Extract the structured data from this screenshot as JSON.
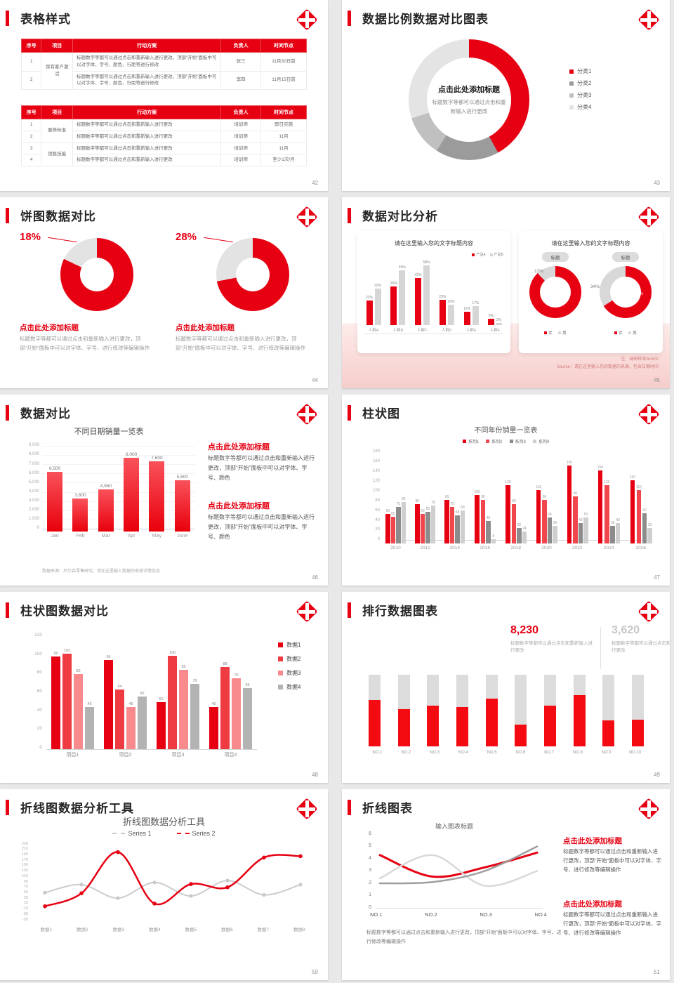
{
  "palette": {
    "red": "#e60012",
    "red2": "#ef3b42",
    "pink": "#f8898c",
    "gray_dark": "#8c8c8c",
    "gray_mid": "#bdbdbd",
    "gray_light": "#e3e3e3"
  },
  "s42": {
    "title": "表格样式",
    "page": "42",
    "headers": [
      "序号",
      "项目",
      "行动方案",
      "负责人",
      "时间节点"
    ],
    "table1": [
      {
        "no": "1",
        "project": "保有客户激活",
        "span": 2,
        "plan": "标题数字等都可以通过点击和重新输入进行更改，顶部“开始”面板中可以对字体、字号、颜色、行距等进行修改",
        "owner": "张三",
        "time": "11月30日前"
      },
      {
        "no": "2",
        "plan": "标题数字等都可以通过点击和重新输入进行更改，顶部“开始”面板中可以对字体、字号、颜色、行距等进行修改",
        "owner": "李四",
        "time": "11月15日前"
      }
    ],
    "table2": [
      {
        "no": "1",
        "project": "服务标准",
        "span": 2,
        "plan": "标题数字等都可以通过点击和重新输入进行更改",
        "owner": "培训师",
        "time": "即日实施"
      },
      {
        "no": "2",
        "plan": "标题数字等都可以通过点击和重新输入进行更改",
        "owner": "培训师",
        "time": "11月"
      },
      {
        "no": "3",
        "project": "销售技能",
        "span": 2,
        "plan": "标题数字等都可以通过点击和重新输入进行更改",
        "owner": "培训师",
        "time": "11月"
      },
      {
        "no": "4",
        "plan": "标题数字等都可以通过点击和重新输入进行更改",
        "owner": "培训师",
        "time": "至少1次/月"
      }
    ]
  },
  "s43": {
    "title": "数据比例数据对比图表",
    "page": "43",
    "center_title": "点击此处添加标题",
    "center_body": "标题数字等都可以通过点击和重新输入进行更改",
    "chart": {
      "type": "pie",
      "labels": [
        "分类1",
        "分类2",
        "分类3",
        "分类4"
      ],
      "values": [
        42,
        17,
        11,
        30
      ],
      "colors": [
        "#e60012",
        "#9b9b9b",
        "#c0c0c0",
        "#e4e4e4"
      ]
    }
  },
  "s44": {
    "title": "饼图数据对比",
    "page": "44",
    "blocks": [
      {
        "pct": "18%",
        "value": 18,
        "heading": "点击此处添加标题",
        "body": "标题数字等都可以通过点击和重新输入进行更改，顶部“开始”面板中可以对字体、字号、进行修改等编辑操作"
      },
      {
        "pct": "28%",
        "value": 28,
        "heading": "点击此处添加标题",
        "body": "标题数字等都可以通过点击和重新输入进行更改，顶部“开始”面板中可以对字体、字号、进行修改等编辑操作"
      }
    ]
  },
  "s45": {
    "title": "数据对比分析",
    "page": "45",
    "left_card": {
      "chart_title": "请在这里输入您的文字标题内容",
      "type": "bar",
      "max": 58,
      "cats": [
        "人群A",
        "人群B",
        "人群C",
        "人群D",
        "人群E",
        "人群F"
      ],
      "series": [
        {
          "name": "产品A",
          "color": "#e60012",
          "values": [
            22,
            35,
            42,
            23,
            12,
            6
          ]
        },
        {
          "name": "产品B",
          "color": "#d6d6d6",
          "values": [
            33,
            49,
            58,
            18,
            17,
            2
          ]
        }
      ]
    },
    "right_card": {
      "chart_title": "请在这里输入您的文字标题内容",
      "pill": "标题",
      "donuts": [
        {
          "gray_label": "12%",
          "red_label": "88%",
          "red": 88
        },
        {
          "gray_label": "34%",
          "red_label": "66%",
          "red": 66
        }
      ],
      "legend": [
        "女",
        "男"
      ]
    },
    "note_line1": "注：调研样本N=500",
    "note_line2": "Source：请在这里输入您的数据的来源，包含日期时间"
  },
  "s46": {
    "title": "数据对比",
    "page": "46",
    "chart_title": "不同日期销量一览表",
    "type": "bar",
    "max": 9000,
    "y_labels": [
      "9,000",
      "8,000",
      "7,000",
      "6,000",
      "5,000",
      "4,000",
      "3,000",
      "2,000",
      "1,000",
      "0"
    ],
    "cats": [
      "Jan",
      "Feb",
      "Mar",
      "Apr",
      "May",
      "June"
    ],
    "values": [
      6500,
      3600,
      4560,
      8000,
      7600,
      5600
    ],
    "value_labels": [
      "6,500",
      "3,600",
      "4,560",
      "8,000",
      "7,600",
      "5,600"
    ],
    "footnote": "数据来源：尼尔森零售研究，请在这里输入数据的来源详情信息",
    "blocks": [
      {
        "heading": "点击此处添加标题",
        "body": "标题数字等都可以通过点击和重新输入进行更改，顶部“开始”面板中可以对字体、字号、颜色"
      },
      {
        "heading": "点击此处添加标题",
        "body": "标题数字等都可以通过点击和重新输入进行更改，顶部“开始”面板中可以对字体、字号、颜色"
      }
    ]
  },
  "s47": {
    "title": "柱状图",
    "page": "47",
    "chart_title": "不同年份销量一览表",
    "type": "bar",
    "max": 180,
    "legend": [
      {
        "label": "系列1",
        "color": "#e60012"
      },
      {
        "label": "系列2",
        "color": "#f0464c"
      },
      {
        "label": "系列3",
        "color": "#8c8c8c"
      },
      {
        "label": "系列4",
        "color": "#cfcfcf"
      }
    ],
    "y_labels": [
      "180",
      "160",
      "140",
      "120",
      "100",
      "80",
      "60",
      "40",
      "20",
      "0"
    ],
    "cats": [
      "2010",
      "2012",
      "2014",
      "2016",
      "2018",
      "2020",
      "2022",
      "2024",
      "2026"
    ],
    "series": [
      [
        60,
        80,
        90,
        100,
        120,
        110,
        160,
        150,
        130
      ],
      [
        55,
        60,
        75,
        90,
        80,
        90,
        96,
        120,
        110
      ],
      [
        75,
        65,
        58,
        46,
        32,
        54,
        42,
        36,
        62
      ],
      [
        85,
        78,
        68,
        8,
        24,
        36,
        53,
        42,
        32
      ]
    ]
  },
  "s48": {
    "title": "柱状图数据对比",
    "page": "48",
    "type": "bar",
    "max": 120,
    "y_labels": [
      "120",
      "100",
      "80",
      "60",
      "40",
      "20",
      "0"
    ],
    "cats": [
      "项目1",
      "项目2",
      "项目3",
      "项目4"
    ],
    "colors": [
      "#e60012",
      "#ef3b42",
      "#f8898c",
      "#b3b3b3"
    ],
    "legend": [
      "数据1",
      "数据2",
      "数据3",
      "数据4"
    ],
    "series": [
      [
        99,
        95,
        50,
        45
      ],
      [
        102,
        64,
        100,
        88
      ],
      [
        80,
        45,
        85,
        76
      ],
      [
        45,
        56,
        70,
        65
      ]
    ]
  },
  "s49": {
    "title": "排行数据图表",
    "page": "49",
    "stat1": {
      "value": "8,230",
      "caption": "标题数字等都可以通过点击和重新输入进行更改"
    },
    "stat2": {
      "value": "3,620",
      "caption": "标题数字等都可以通过点击和重新输入进行更改"
    },
    "type": "stacked-bar",
    "cats": [
      "NO.1",
      "NO.2",
      "NO.3",
      "NO.4",
      "NO.5",
      "NO.6",
      "NO.7",
      "NO.8",
      "NO.9",
      "NO.10"
    ],
    "red_pct": [
      65,
      52,
      57,
      55,
      67,
      30,
      57,
      72,
      36,
      37
    ]
  },
  "s50": {
    "title": "折线图数据分析工具",
    "page": "50",
    "chart_title": "折线图数据分析工具",
    "type": "line",
    "ymax": 230,
    "ymin": -50,
    "legend": [
      "Series 1",
      "Series 2"
    ],
    "y_labels": [
      "230",
      "210",
      "190",
      "170",
      "150",
      "130",
      "110",
      "90",
      "70",
      "50",
      "30",
      "10",
      "-10",
      "-30",
      "-50"
    ],
    "cats": [
      "数据1",
      "数据2",
      "数据3",
      "数据4",
      "数据5",
      "数据6",
      "数据7",
      "数据8"
    ],
    "series1": [
      50,
      80,
      30,
      88,
      38,
      95,
      42,
      80
    ],
    "series2": [
      0,
      48,
      200,
      10,
      82,
      70,
      180,
      185
    ]
  },
  "s51": {
    "title": "折线图表",
    "page": "51",
    "chart_title": "输入图表标题",
    "type": "line",
    "ymax": 6,
    "ymin": 0,
    "y_labels": [
      "6",
      "5",
      "4",
      "3",
      "2",
      "1",
      "0"
    ],
    "cats": [
      "NO.1",
      "NO.2",
      "NO.3",
      "NO.4"
    ],
    "lines": [
      {
        "color": "#e60012",
        "width": 3,
        "values": [
          4.3,
          2.55,
          3.3,
          4.5
        ]
      },
      {
        "color": "#d9d9d9",
        "width": 2.5,
        "values": [
          2.4,
          4.3,
          1.8,
          3.0
        ]
      },
      {
        "color": "#9e9e9e",
        "width": 2.5,
        "values": [
          2.0,
          2.1,
          3.0,
          5.0
        ]
      }
    ],
    "footnote": "标题数字等都可以通过点击和重新输入进行更改，顶部“开始”面板中可以对字体、字号、进行修改等编辑操作",
    "blocks": [
      {
        "heading": "点击此处添加标题",
        "body": "标题数字等都可以通过点击和重新输入进行更改，顶部“开始”面板中可以对字体、字号、进行修改等编辑操作"
      },
      {
        "heading": "点击此处添加标题",
        "body": "标题数字等都可以通过点击和重新输入进行更改，顶部“开始”面板中可以对字体、字号、进行修改等编辑操作"
      }
    ]
  }
}
